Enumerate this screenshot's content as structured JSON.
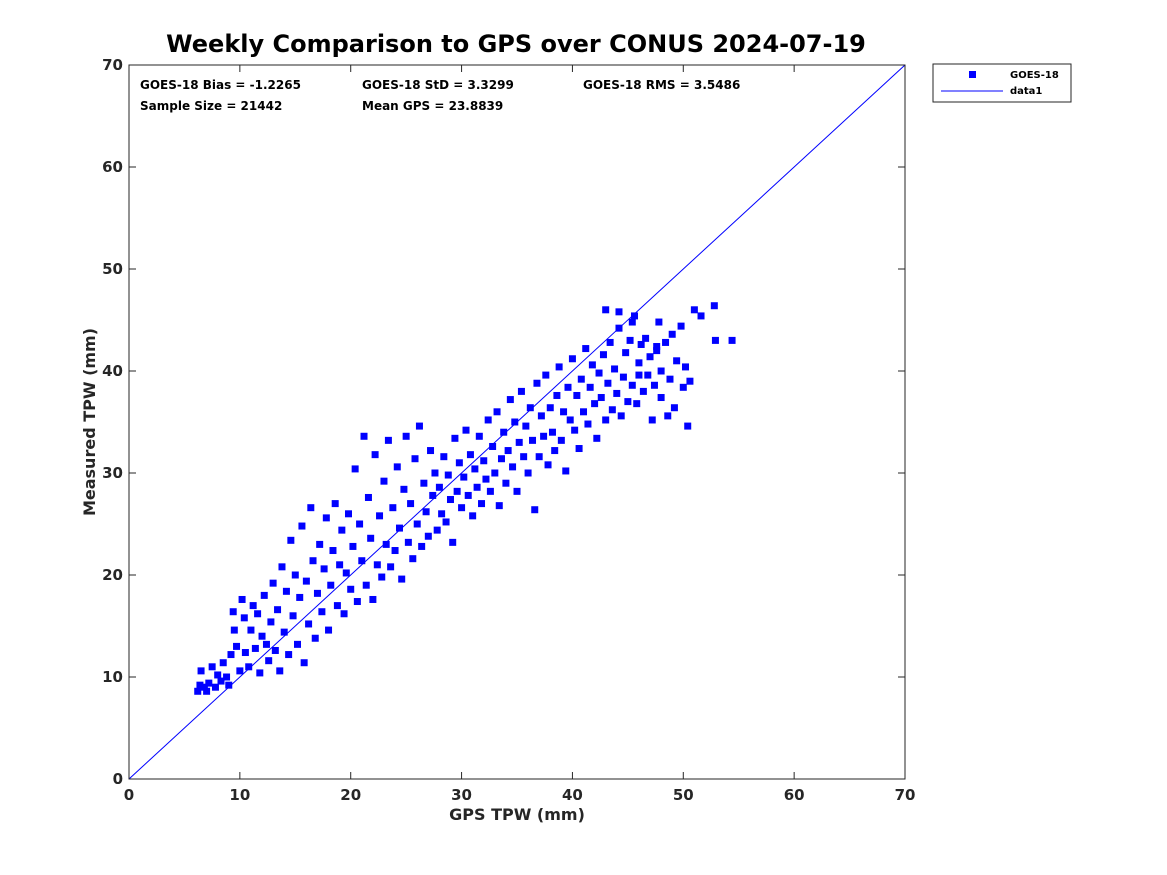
{
  "chart_data": {
    "type": "scatter",
    "title": "Weekly Comparison to GPS over CONUS 2024-07-19",
    "xlabel": "GPS TPW (mm)",
    "ylabel": "Measured TPW (mm)",
    "xlim": [
      0,
      70
    ],
    "ylim": [
      0,
      70
    ],
    "xticks": [
      "0",
      "10",
      "20",
      "30",
      "40",
      "50",
      "60",
      "70"
    ],
    "yticks": [
      "0",
      "10",
      "20",
      "30",
      "40",
      "50",
      "60",
      "70"
    ],
    "grid": false,
    "legend_position": "outside-top-right",
    "stats": {
      "bias": "GOES-18 Bias = -1.2265",
      "std": "GOES-18 StD = 3.3299",
      "rms": "GOES-18 RMS = 3.5486",
      "sample_size": "Sample Size = 21442",
      "mean_gps": "Mean GPS = 23.8839"
    },
    "series": [
      {
        "name": "GOES-18",
        "kind": "scatter",
        "marker": "square",
        "color": "#0000ff",
        "points": [
          [
            6.2,
            8.6
          ],
          [
            6.4,
            9.2
          ],
          [
            6.5,
            10.6
          ],
          [
            6.8,
            9.0
          ],
          [
            7.0,
            8.6
          ],
          [
            7.2,
            9.4
          ],
          [
            7.5,
            11.0
          ],
          [
            7.8,
            9.0
          ],
          [
            8.0,
            10.2
          ],
          [
            8.3,
            9.6
          ],
          [
            8.5,
            11.4
          ],
          [
            8.8,
            10.0
          ],
          [
            9.0,
            9.2
          ],
          [
            9.2,
            12.2
          ],
          [
            9.4,
            16.4
          ],
          [
            9.5,
            14.6
          ],
          [
            9.7,
            13.0
          ],
          [
            10.0,
            10.6
          ],
          [
            10.2,
            17.6
          ],
          [
            10.4,
            15.8
          ],
          [
            10.5,
            12.4
          ],
          [
            10.8,
            11.0
          ],
          [
            11.0,
            14.6
          ],
          [
            11.2,
            17.0
          ],
          [
            11.4,
            12.8
          ],
          [
            11.6,
            16.2
          ],
          [
            11.8,
            10.4
          ],
          [
            12.0,
            14.0
          ],
          [
            12.2,
            18.0
          ],
          [
            12.4,
            13.2
          ],
          [
            12.6,
            11.6
          ],
          [
            12.8,
            15.4
          ],
          [
            13.0,
            19.2
          ],
          [
            13.2,
            12.6
          ],
          [
            13.4,
            16.6
          ],
          [
            13.6,
            10.6
          ],
          [
            13.8,
            20.8
          ],
          [
            14.0,
            14.4
          ],
          [
            14.2,
            18.4
          ],
          [
            14.4,
            12.2
          ],
          [
            14.6,
            23.4
          ],
          [
            14.8,
            16.0
          ],
          [
            15.0,
            20.0
          ],
          [
            15.2,
            13.2
          ],
          [
            15.4,
            17.8
          ],
          [
            15.6,
            24.8
          ],
          [
            15.8,
            11.4
          ],
          [
            16.0,
            19.4
          ],
          [
            16.2,
            15.2
          ],
          [
            16.4,
            26.6
          ],
          [
            16.6,
            21.4
          ],
          [
            16.8,
            13.8
          ],
          [
            17.0,
            18.2
          ],
          [
            17.2,
            23.0
          ],
          [
            17.4,
            16.4
          ],
          [
            17.6,
            20.6
          ],
          [
            17.8,
            25.6
          ],
          [
            18.0,
            14.6
          ],
          [
            18.2,
            19.0
          ],
          [
            18.4,
            22.4
          ],
          [
            18.6,
            27.0
          ],
          [
            18.8,
            17.0
          ],
          [
            19.0,
            21.0
          ],
          [
            19.2,
            24.4
          ],
          [
            19.4,
            16.2
          ],
          [
            19.6,
            20.2
          ],
          [
            19.8,
            26.0
          ],
          [
            20.0,
            18.6
          ],
          [
            20.2,
            22.8
          ],
          [
            20.4,
            30.4
          ],
          [
            20.6,
            17.4
          ],
          [
            20.8,
            25.0
          ],
          [
            21.0,
            21.4
          ],
          [
            21.2,
            33.6
          ],
          [
            21.4,
            19.0
          ],
          [
            21.6,
            27.6
          ],
          [
            21.8,
            23.6
          ],
          [
            22.0,
            17.6
          ],
          [
            22.2,
            31.8
          ],
          [
            22.4,
            21.0
          ],
          [
            22.6,
            25.8
          ],
          [
            22.8,
            19.8
          ],
          [
            23.0,
            29.2
          ],
          [
            23.2,
            23.0
          ],
          [
            23.4,
            33.2
          ],
          [
            23.6,
            20.8
          ],
          [
            23.8,
            26.6
          ],
          [
            24.0,
            22.4
          ],
          [
            24.2,
            30.6
          ],
          [
            24.4,
            24.6
          ],
          [
            24.6,
            19.6
          ],
          [
            24.8,
            28.4
          ],
          [
            25.0,
            33.6
          ],
          [
            25.2,
            23.2
          ],
          [
            25.4,
            27.0
          ],
          [
            25.6,
            21.6
          ],
          [
            25.8,
            31.4
          ],
          [
            26.0,
            25.0
          ],
          [
            26.2,
            34.6
          ],
          [
            26.4,
            22.8
          ],
          [
            26.6,
            29.0
          ],
          [
            26.8,
            26.2
          ],
          [
            27.0,
            23.8
          ],
          [
            27.2,
            32.2
          ],
          [
            27.4,
            27.8
          ],
          [
            27.6,
            30.0
          ],
          [
            27.8,
            24.4
          ],
          [
            28.0,
            28.6
          ],
          [
            28.2,
            26.0
          ],
          [
            28.4,
            31.6
          ],
          [
            28.6,
            25.2
          ],
          [
            28.8,
            29.8
          ],
          [
            29.0,
            27.4
          ],
          [
            29.2,
            23.2
          ],
          [
            29.4,
            33.4
          ],
          [
            29.6,
            28.2
          ],
          [
            29.8,
            31.0
          ],
          [
            30.0,
            26.6
          ],
          [
            30.2,
            29.6
          ],
          [
            30.4,
            34.2
          ],
          [
            30.6,
            27.8
          ],
          [
            30.8,
            31.8
          ],
          [
            31.0,
            25.8
          ],
          [
            31.2,
            30.4
          ],
          [
            31.4,
            28.6
          ],
          [
            31.6,
            33.6
          ],
          [
            31.8,
            27.0
          ],
          [
            32.0,
            31.2
          ],
          [
            32.2,
            29.4
          ],
          [
            32.4,
            35.2
          ],
          [
            32.6,
            28.2
          ],
          [
            32.8,
            32.6
          ],
          [
            33.0,
            30.0
          ],
          [
            33.2,
            36.0
          ],
          [
            33.4,
            26.8
          ],
          [
            33.6,
            31.4
          ],
          [
            33.8,
            34.0
          ],
          [
            34.0,
            29.0
          ],
          [
            34.2,
            32.2
          ],
          [
            34.4,
            37.2
          ],
          [
            34.6,
            30.6
          ],
          [
            34.8,
            35.0
          ],
          [
            35.0,
            28.2
          ],
          [
            35.2,
            33.0
          ],
          [
            35.4,
            38.0
          ],
          [
            35.6,
            31.6
          ],
          [
            35.8,
            34.6
          ],
          [
            36.0,
            30.0
          ],
          [
            36.2,
            36.4
          ],
          [
            36.4,
            33.2
          ],
          [
            36.6,
            26.4
          ],
          [
            36.8,
            38.8
          ],
          [
            37.0,
            31.6
          ],
          [
            37.2,
            35.6
          ],
          [
            37.4,
            33.6
          ],
          [
            37.6,
            39.6
          ],
          [
            37.8,
            30.8
          ],
          [
            38.0,
            36.4
          ],
          [
            38.2,
            34.0
          ],
          [
            38.4,
            32.2
          ],
          [
            38.6,
            37.6
          ],
          [
            38.8,
            40.4
          ],
          [
            39.0,
            33.2
          ],
          [
            39.2,
            36.0
          ],
          [
            39.4,
            30.2
          ],
          [
            39.6,
            38.4
          ],
          [
            39.8,
            35.2
          ],
          [
            40.0,
            41.2
          ],
          [
            40.2,
            34.2
          ],
          [
            40.4,
            37.6
          ],
          [
            40.6,
            32.4
          ],
          [
            40.8,
            39.2
          ],
          [
            41.0,
            36.0
          ],
          [
            41.2,
            42.2
          ],
          [
            41.4,
            34.8
          ],
          [
            41.6,
            38.4
          ],
          [
            41.8,
            40.6
          ],
          [
            42.0,
            36.8
          ],
          [
            42.2,
            33.4
          ],
          [
            42.4,
            39.8
          ],
          [
            42.6,
            37.4
          ],
          [
            42.8,
            41.6
          ],
          [
            43.0,
            35.2
          ],
          [
            43.2,
            38.8
          ],
          [
            43.4,
            42.8
          ],
          [
            43.6,
            36.2
          ],
          [
            43.8,
            40.2
          ],
          [
            44.0,
            37.8
          ],
          [
            44.2,
            44.2
          ],
          [
            44.4,
            35.6
          ],
          [
            44.6,
            39.4
          ],
          [
            44.8,
            41.8
          ],
          [
            45.0,
            37.0
          ],
          [
            45.2,
            43.0
          ],
          [
            45.4,
            38.6
          ],
          [
            45.6,
            45.4
          ],
          [
            45.8,
            36.8
          ],
          [
            46.0,
            40.8
          ],
          [
            46.2,
            42.6
          ],
          [
            46.4,
            38.0
          ],
          [
            46.6,
            43.2
          ],
          [
            46.8,
            39.6
          ],
          [
            47.0,
            41.4
          ],
          [
            47.2,
            35.2
          ],
          [
            47.4,
            38.6
          ],
          [
            47.6,
            42.4
          ],
          [
            47.8,
            44.8
          ],
          [
            48.0,
            40.0
          ],
          [
            48.4,
            42.8
          ],
          [
            48.6,
            35.6
          ],
          [
            48.8,
            39.2
          ],
          [
            49.0,
            43.6
          ],
          [
            49.4,
            41.0
          ],
          [
            49.8,
            44.4
          ],
          [
            50.0,
            38.4
          ],
          [
            50.2,
            40.4
          ],
          [
            50.4,
            34.6
          ],
          [
            50.6,
            39.0
          ],
          [
            51.0,
            46.0
          ],
          [
            51.6,
            45.4
          ],
          [
            52.8,
            46.4
          ],
          [
            52.9,
            43.0
          ],
          [
            54.4,
            43.0
          ],
          [
            45.4,
            44.8
          ],
          [
            44.2,
            45.8
          ],
          [
            47.6,
            42.0
          ],
          [
            49.2,
            36.4
          ],
          [
            48.0,
            37.4
          ],
          [
            43.0,
            46.0
          ],
          [
            46.0,
            39.6
          ]
        ]
      },
      {
        "name": "data1",
        "kind": "line",
        "color": "#0000ff",
        "points": [
          [
            0,
            0
          ],
          [
            70,
            70
          ]
        ]
      }
    ]
  }
}
